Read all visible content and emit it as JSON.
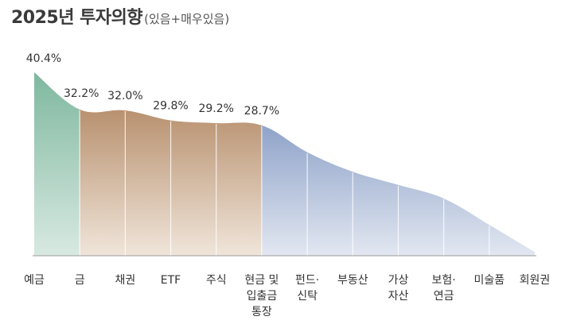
{
  "title": {
    "main": "2025년 투자의향",
    "sub": "(있음+매우있음)"
  },
  "chart_data": {
    "type": "area",
    "title": "2025년 투자의향(있음+매우있음)",
    "xlabel": "",
    "ylabel": "",
    "ylim": [
      0,
      40.4
    ],
    "unit": "%",
    "grid": false,
    "legend": "none",
    "categories": [
      [
        "예금"
      ],
      [
        "금"
      ],
      [
        "채권"
      ],
      [
        "ETF"
      ],
      [
        "주식"
      ],
      [
        "현금 및",
        "입출금",
        "통장"
      ],
      [
        "펀드·",
        "신탁"
      ],
      [
        "부동산"
      ],
      [
        "가상",
        "자산"
      ],
      [
        "보험·",
        "연금"
      ],
      [
        "미술품"
      ],
      [
        "회원권"
      ]
    ],
    "values": [
      40.4,
      32.2,
      32.0,
      29.8,
      29.2,
      28.7,
      22.8,
      18.5,
      15.6,
      12.6,
      6.8,
      0.8
    ],
    "value_labels": [
      "40.4%",
      "32.2%",
      "32.0%",
      "29.8%",
      "29.2%",
      "28.7%",
      "",
      "",
      "",
      "",
      "",
      ""
    ],
    "segments": [
      {
        "from": 0,
        "to": 1,
        "color_top": "#7fb89f",
        "color_bottom": "#d8e9e2"
      },
      {
        "from": 1,
        "to": 5,
        "color_top": "#b8916f",
        "color_bottom": "#f0e5da"
      },
      {
        "from": 5,
        "to": 11,
        "color_top": "#8fa3c9",
        "color_bottom": "#e2e7f1"
      }
    ],
    "colors": {
      "baseline": "#9a9a9a",
      "divider": "#ffffff",
      "text": "#333333"
    }
  }
}
